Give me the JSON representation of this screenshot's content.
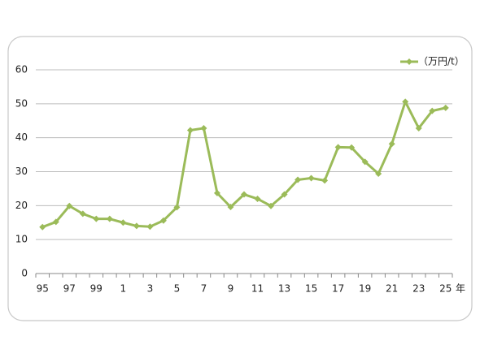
{
  "chart_data": {
    "type": "line",
    "x_label": "年",
    "categories": [
      "95",
      null,
      "97",
      null,
      "99",
      null,
      "1",
      null,
      "3",
      null,
      "5",
      null,
      "7",
      null,
      "9",
      null,
      "11",
      null,
      "13",
      null,
      "15",
      null,
      "17",
      null,
      "19",
      null,
      "21",
      null,
      "23",
      null,
      "25"
    ],
    "series": [
      {
        "name": "（万円/t）",
        "color": "#9bbb59",
        "values": [
          13.7,
          15.2,
          19.9,
          17.6,
          16.1,
          16.1,
          15.0,
          14.0,
          13.8,
          15.6,
          19.5,
          42.2,
          42.8,
          23.7,
          19.6,
          23.3,
          22.0,
          19.9,
          23.3,
          27.6,
          28.1,
          27.4,
          37.2,
          37.1,
          32.9,
          29.4,
          38.2,
          50.6,
          42.8,
          47.9,
          48.8
        ]
      }
    ],
    "ylim": [
      0,
      60
    ],
    "yticks": [
      0,
      10,
      20,
      30,
      40,
      50,
      60
    ],
    "grid": true,
    "legend": "top-right"
  }
}
